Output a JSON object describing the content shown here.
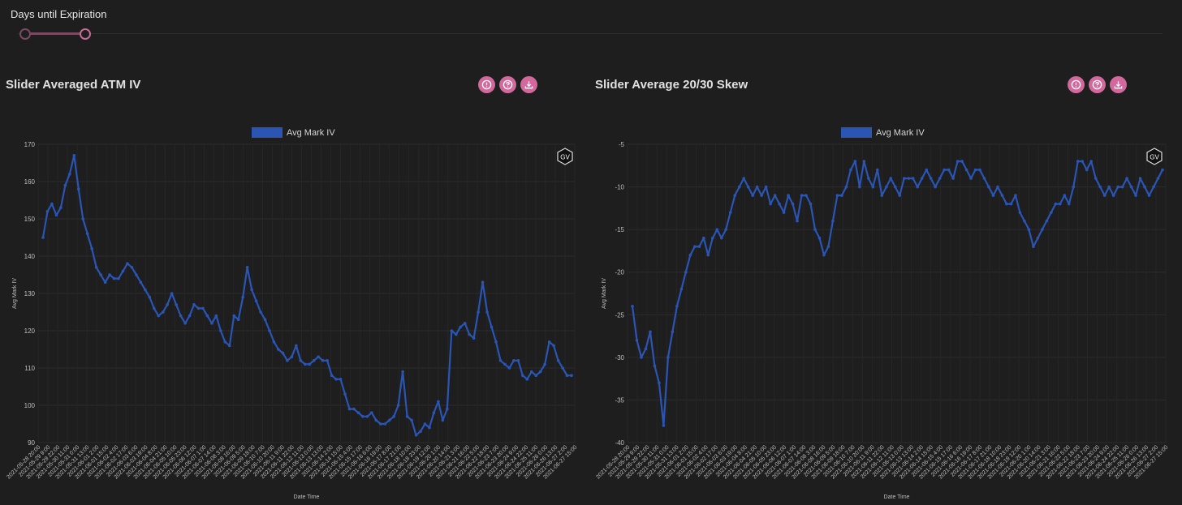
{
  "slider": {
    "label": "Days until Expiration"
  },
  "icons": {
    "action1": "alert-circle-icon",
    "action2": "help-circle-icon",
    "action3": "download-icon",
    "badge": "gv-logo-icon"
  },
  "colors": {
    "series": "#2a55b5",
    "accent": "#d4689c",
    "background": "#1e1e1e"
  },
  "badge_text": "GV",
  "panels": [
    {
      "title": "Slider Averaged ATM IV"
    },
    {
      "title": "Slider Average 20/30 Skew"
    }
  ],
  "chart_data": [
    {
      "type": "line",
      "legend": [
        "Avg Mark IV"
      ],
      "legend_position": "top-center",
      "xlabel": "Date Time",
      "ylabel": "Avg Mark IV",
      "ylim": [
        90,
        170
      ],
      "yticks": [
        "170",
        "160",
        "150",
        "140",
        "130",
        "120",
        "110",
        "100",
        "90"
      ],
      "grid": true,
      "xticks": [
        "2021-05-28 20:00",
        "2021-05-29 9:00",
        "2021-05-29 22:00",
        "2021-05-30 11:00",
        "2021-05-31 0:00",
        "2021-05-31 13:00",
        "2021-06-01 2:00",
        "2021-06-01 15:00",
        "2021-06-02 4:00",
        "2021-06-02 17:00",
        "2021-06-03 6:00",
        "2021-06-03 19:00",
        "2021-06-04 8:00",
        "2021-06-04 21:00",
        "2021-06-05 10:00",
        "2021-06-05 23:00",
        "2021-06-06 12:00",
        "2021-06-07 1:00",
        "2021-06-07 14:00",
        "2021-06-08 3:00",
        "2021-06-08 16:00",
        "2021-06-09 5:00",
        "2021-06-09 18:00",
        "2021-06-10 7:00",
        "2021-06-10 20:00",
        "2021-06-11 9:00",
        "2021-06-11 22:00",
        "2021-06-12 11:00",
        "2021-06-13 0:00",
        "2021-06-13 13:00",
        "2021-06-14 2:00",
        "2021-06-14 15:00",
        "2021-06-15 4:00",
        "2021-06-15 17:00",
        "2021-06-16 6:00",
        "2021-06-16 19:00",
        "2021-06-17 8:00",
        "2021-06-17 21:00",
        "2021-06-18 10:00",
        "2021-06-18 23:00",
        "2021-06-19 12:00",
        "2021-06-20 1:00",
        "2021-06-20 14:00",
        "2021-06-21 3:00",
        "2021-06-21 16:00",
        "2021-06-22 5:00",
        "2021-06-22 18:00",
        "2021-06-23 7:00",
        "2021-06-23 20:00",
        "2021-06-24 9:00",
        "2021-06-24 22:00",
        "2021-06-25 11:00",
        "2021-06-26 0:00",
        "2021-06-26 13:00",
        "2021-06-27 2:00",
        "2021-06-27 15:00"
      ],
      "series": [
        {
          "name": "Avg Mark IV",
          "values": [
            145,
            152,
            154,
            151,
            153,
            159,
            162,
            167,
            158,
            150,
            146,
            142,
            137,
            135,
            133,
            135,
            134,
            134,
            136,
            138,
            137,
            135,
            133,
            131,
            129,
            126,
            124,
            125,
            127,
            130,
            127,
            124,
            122,
            124,
            127,
            126,
            126,
            124,
            122,
            124,
            120,
            117,
            116,
            124,
            123,
            129,
            137,
            131,
            128,
            125,
            123,
            120,
            117,
            115,
            114,
            112,
            113,
            116,
            112,
            111,
            111,
            112,
            113,
            112,
            112,
            108,
            107,
            107,
            103,
            99,
            99,
            98,
            97,
            97,
            98,
            96,
            95,
            95,
            96,
            97,
            100,
            109,
            97,
            96,
            92,
            93,
            95,
            94,
            98,
            101,
            96,
            99,
            120,
            119,
            121,
            122,
            119,
            118,
            125,
            133,
            125,
            121,
            117,
            112,
            111,
            110,
            112,
            112,
            108,
            107,
            109,
            108,
            109,
            111,
            117,
            116,
            112,
            110,
            108,
            108
          ]
        }
      ]
    },
    {
      "type": "line",
      "legend": [
        "Avg Mark IV"
      ],
      "legend_position": "top-center",
      "xlabel": "Date Time",
      "ylabel": "Avg Mark IV",
      "ylim": [
        -40,
        -5
      ],
      "yticks": [
        "-5",
        "-10",
        "-15",
        "-20",
        "-25",
        "-30",
        "-35",
        "-40"
      ],
      "grid": true,
      "xticks": [
        "2021-05-28 20:00",
        "2021-05-29 9:00",
        "2021-05-29 22:00",
        "2021-05-30 11:00",
        "2021-05-31 0:00",
        "2021-05-31 13:00",
        "2021-06-01 2:00",
        "2021-06-01 15:00",
        "2021-06-02 4:00",
        "2021-06-02 17:00",
        "2021-06-03 6:00",
        "2021-06-03 19:00",
        "2021-06-04 8:00",
        "2021-06-04 21:00",
        "2021-06-05 10:00",
        "2021-06-05 23:00",
        "2021-06-06 12:00",
        "2021-06-07 1:00",
        "2021-06-07 14:00",
        "2021-06-08 3:00",
        "2021-06-08 16:00",
        "2021-06-09 5:00",
        "2021-06-09 18:00",
        "2021-06-10 7:00",
        "2021-06-10 20:00",
        "2021-06-11 9:00",
        "2021-06-11 22:00",
        "2021-06-12 11:00",
        "2021-06-13 0:00",
        "2021-06-13 13:00",
        "2021-06-14 2:00",
        "2021-06-14 15:00",
        "2021-06-15 4:00",
        "2021-06-15 17:00",
        "2021-06-16 6:00",
        "2021-06-16 19:00",
        "2021-06-17 8:00",
        "2021-06-17 21:00",
        "2021-06-18 10:00",
        "2021-06-18 23:00",
        "2021-06-19 12:00",
        "2021-06-20 1:00",
        "2021-06-20 14:00",
        "2021-06-21 3:00",
        "2021-06-21 16:00",
        "2021-06-22 5:00",
        "2021-06-22 18:00",
        "2021-06-23 7:00",
        "2021-06-23 20:00",
        "2021-06-24 9:00",
        "2021-06-24 22:00",
        "2021-06-25 11:00",
        "2021-06-26 0:00",
        "2021-06-26 13:00",
        "2021-06-27 2:00",
        "2021-06-27 15:00"
      ],
      "series": [
        {
          "name": "Avg Mark IV",
          "values": [
            -24,
            -28,
            -30,
            -29,
            -27,
            -31,
            -33,
            -38,
            -30,
            -27,
            -24,
            -22,
            -20,
            -18,
            -17,
            -17,
            -16,
            -18,
            -16,
            -15,
            -16,
            -15,
            -13,
            -11,
            -10,
            -9,
            -10,
            -11,
            -10,
            -11,
            -10,
            -12,
            -11,
            -12,
            -13,
            -11,
            -12,
            -14,
            -11,
            -11,
            -12,
            -15,
            -16,
            -18,
            -17,
            -14,
            -11,
            -11,
            -10,
            -8,
            -7,
            -10,
            -7,
            -9,
            -10,
            -8,
            -11,
            -10,
            -9,
            -10,
            -11,
            -9,
            -9,
            -9,
            -10,
            -9,
            -8,
            -9,
            -10,
            -9,
            -8,
            -8,
            -9,
            -7,
            -7,
            -8,
            -9,
            -8,
            -8,
            -9,
            -10,
            -11,
            -10,
            -11,
            -12,
            -12,
            -11,
            -13,
            -14,
            -15,
            -17,
            -16,
            -15,
            -14,
            -13,
            -12,
            -12,
            -11,
            -12,
            -10,
            -7,
            -7,
            -8,
            -7,
            -9,
            -10,
            -11,
            -10,
            -11,
            -10,
            -10,
            -9,
            -10,
            -11,
            -9,
            -10,
            -11,
            -10,
            -9,
            -8
          ]
        }
      ]
    }
  ]
}
